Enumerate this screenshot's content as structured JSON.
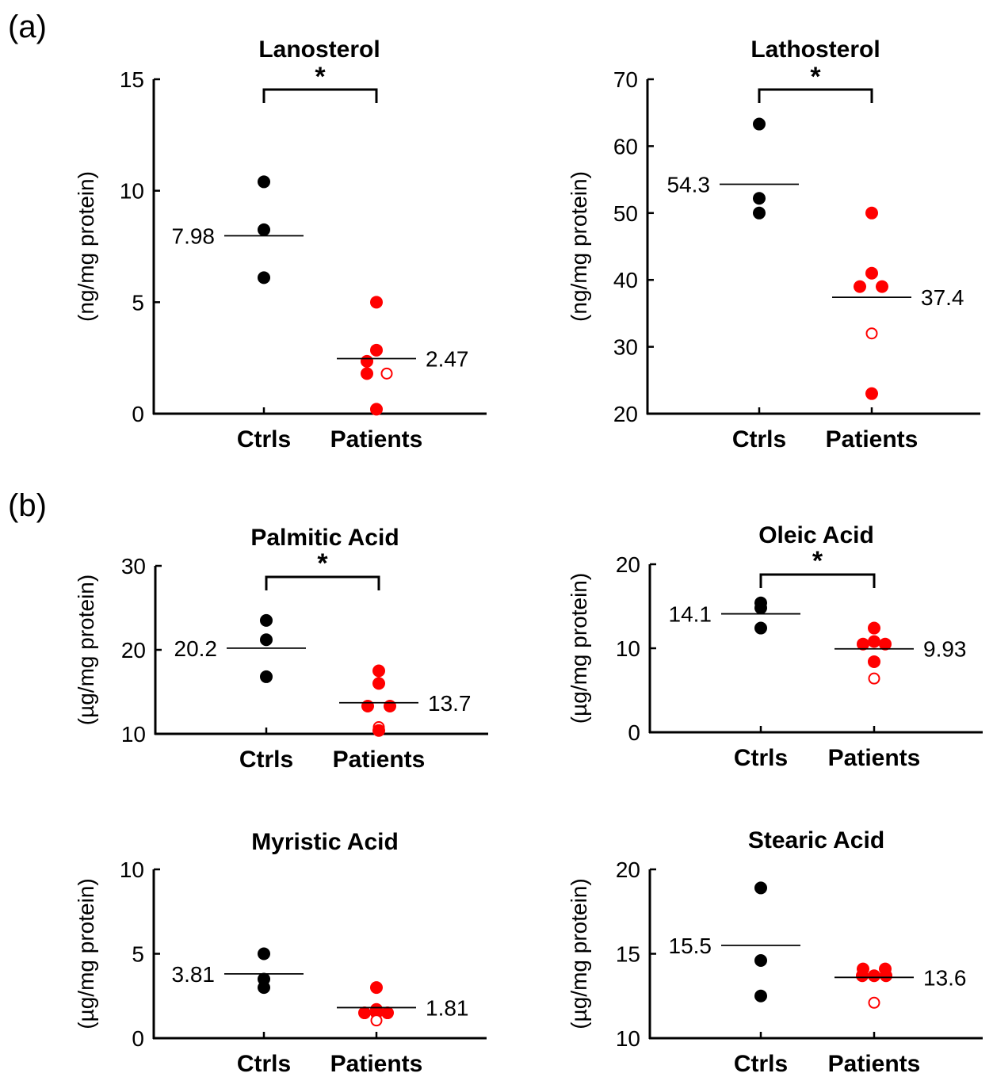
{
  "panels": [
    {
      "letter": "(a)"
    },
    {
      "letter": "(b)"
    }
  ],
  "colors": {
    "ctrl": "#000000",
    "patient": "#ff0000",
    "axis": "#000000"
  },
  "chart_data": [
    {
      "type": "scatter",
      "panel": "(a)",
      "title": "Lanosterol",
      "ylabel": "(ng/mg protein)",
      "categories": [
        "Ctrls",
        "Patients"
      ],
      "ylim": [
        0,
        15
      ],
      "yticks": [
        0,
        5,
        10,
        15
      ],
      "series": [
        {
          "name": "Ctrls",
          "points": [
            {
              "y": 10.4
            },
            {
              "y": 8.25
            },
            {
              "y": 6.1
            }
          ],
          "mean": 7.98,
          "mean_label": "7.98"
        },
        {
          "name": "Patients",
          "points": [
            {
              "y": 5.0
            },
            {
              "y": 2.85
            },
            {
              "y": 2.35
            },
            {
              "y": 1.8
            },
            {
              "y": 1.8,
              "hollow": true
            },
            {
              "y": 0.2
            }
          ],
          "mean": 2.47,
          "mean_label": "2.47"
        }
      ],
      "significance": "*"
    },
    {
      "type": "scatter",
      "panel": "(a)",
      "title": "Lathosterol",
      "ylabel": "(ng/mg protein)",
      "categories": [
        "Ctrls",
        "Patients"
      ],
      "ylim": [
        20,
        70
      ],
      "yticks": [
        20,
        30,
        40,
        50,
        60,
        70
      ],
      "series": [
        {
          "name": "Ctrls",
          "points": [
            {
              "y": 63.3
            },
            {
              "y": 52.2
            },
            {
              "y": 50.0
            }
          ],
          "mean": 54.3,
          "mean_label": "54.3"
        },
        {
          "name": "Patients",
          "points": [
            {
              "y": 50.0
            },
            {
              "y": 41.0
            },
            {
              "y": 39.0
            },
            {
              "y": 39.0
            },
            {
              "y": 32.0,
              "hollow": true
            },
            {
              "y": 23.0
            }
          ],
          "mean": 37.4,
          "mean_label": "37.4"
        }
      ],
      "significance": "*"
    },
    {
      "type": "scatter",
      "panel": "(b)",
      "title": "Palmitic Acid",
      "ylabel": "(µg/mg protein)",
      "categories": [
        "Ctrls",
        "Patients"
      ],
      "ylim": [
        10,
        30
      ],
      "yticks": [
        10,
        20,
        30
      ],
      "series": [
        {
          "name": "Ctrls",
          "points": [
            {
              "y": 23.5
            },
            {
              "y": 21.2
            },
            {
              "y": 16.8
            }
          ],
          "mean": 20.2,
          "mean_label": "20.2"
        },
        {
          "name": "Patients",
          "points": [
            {
              "y": 17.5
            },
            {
              "y": 16.0
            },
            {
              "y": 13.3
            },
            {
              "y": 13.3
            },
            {
              "y": 10.8,
              "hollow": true
            },
            {
              "y": 10.4
            }
          ],
          "mean": 13.7,
          "mean_label": "13.7"
        }
      ],
      "significance": "*"
    },
    {
      "type": "scatter",
      "panel": "(b)",
      "title": "Oleic Acid",
      "ylabel": "(µg/mg protein)",
      "categories": [
        "Ctrls",
        "Patients"
      ],
      "ylim": [
        0,
        20
      ],
      "yticks": [
        0,
        10,
        20
      ],
      "series": [
        {
          "name": "Ctrls",
          "points": [
            {
              "y": 15.4
            },
            {
              "y": 14.8
            },
            {
              "y": 12.4
            }
          ],
          "mean": 14.1,
          "mean_label": "14.1"
        },
        {
          "name": "Patients",
          "points": [
            {
              "y": 12.4
            },
            {
              "y": 10.8
            },
            {
              "y": 10.5
            },
            {
              "y": 10.5
            },
            {
              "y": 8.4
            },
            {
              "y": 6.4,
              "hollow": true
            }
          ],
          "mean": 9.93,
          "mean_label": "9.93"
        }
      ],
      "significance": "*"
    },
    {
      "type": "scatter",
      "panel": "(b)",
      "title": "Myristic Acid",
      "ylabel": "(µg/mg protein)",
      "categories": [
        "Ctrls",
        "Patients"
      ],
      "ylim": [
        0,
        10
      ],
      "yticks": [
        0,
        5,
        10
      ],
      "series": [
        {
          "name": "Ctrls",
          "points": [
            {
              "y": 5.0
            },
            {
              "y": 3.5
            },
            {
              "y": 3.0
            }
          ],
          "mean": 3.81,
          "mean_label": "3.81"
        },
        {
          "name": "Patients",
          "points": [
            {
              "y": 3.0
            },
            {
              "y": 1.7
            },
            {
              "y": 1.5
            },
            {
              "y": 1.5
            },
            {
              "y": 1.5
            },
            {
              "y": 1.05,
              "hollow": true
            }
          ],
          "mean": 1.81,
          "mean_label": "1.81"
        }
      ],
      "significance": ""
    },
    {
      "type": "scatter",
      "panel": "(b)",
      "title": "Stearic Acid",
      "ylabel": "(µg/mg protein)",
      "categories": [
        "Ctrls",
        "Patients"
      ],
      "ylim": [
        10,
        20
      ],
      "yticks": [
        10,
        15,
        20
      ],
      "series": [
        {
          "name": "Ctrls",
          "points": [
            {
              "y": 18.9
            },
            {
              "y": 14.6
            },
            {
              "y": 12.5
            }
          ],
          "mean": 15.5,
          "mean_label": "15.5"
        },
        {
          "name": "Patients",
          "points": [
            {
              "y": 14.1
            },
            {
              "y": 14.1
            },
            {
              "y": 13.7
            },
            {
              "y": 13.7
            },
            {
              "y": 13.7
            },
            {
              "y": 12.1,
              "hollow": true
            }
          ],
          "mean": 13.6,
          "mean_label": "13.6"
        }
      ],
      "significance": ""
    }
  ]
}
